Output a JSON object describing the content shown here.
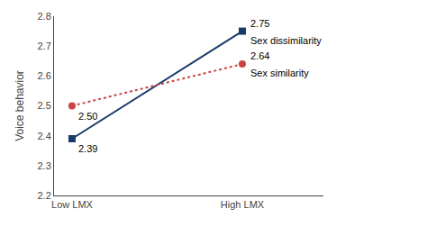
{
  "chart_data": {
    "type": "line",
    "categories": [
      "Low LMX",
      "High LMX"
    ],
    "series": [
      {
        "name": "Sex dissimilarity",
        "color": "#1a3a6b",
        "line_style": "solid",
        "marker": "square",
        "values": [
          2.39,
          2.75
        ],
        "value_labels": [
          "2.39",
          "2.75"
        ]
      },
      {
        "name": "Sex similarity",
        "color": "#cc4444",
        "line_style": "dotted",
        "marker": "circle",
        "values": [
          2.5,
          2.64
        ],
        "value_labels": [
          "2.50",
          "2.64"
        ]
      }
    ],
    "ylabel": "Voice behavior",
    "ylim": [
      2.2,
      2.8
    ],
    "yticks": [
      2.2,
      2.3,
      2.4,
      2.5,
      2.6,
      2.7,
      2.8
    ],
    "grid": false,
    "data_labels": true
  }
}
